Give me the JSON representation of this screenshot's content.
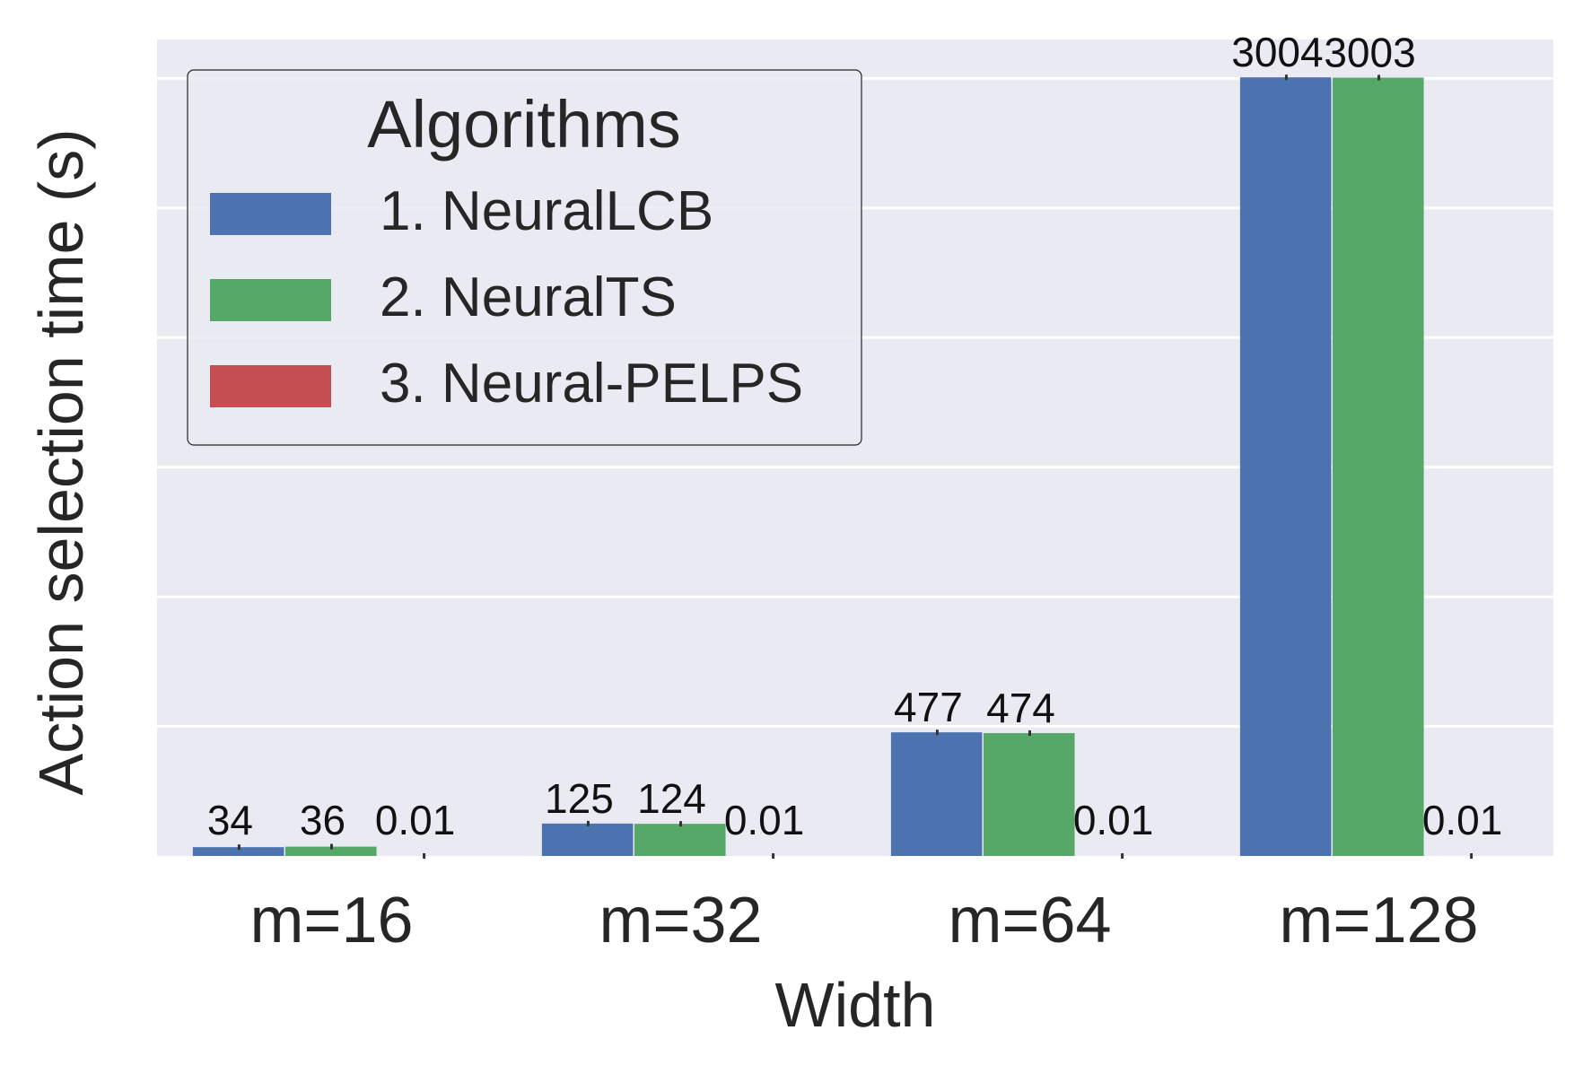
{
  "chart_data": {
    "type": "bar",
    "categories": [
      "m=16",
      "m=32",
      "m=64",
      "m=128"
    ],
    "series": [
      {
        "name": "1. NeuralLCB",
        "values": [
          34,
          125,
          477,
          3004
        ],
        "labels": [
          "34",
          "125",
          "477",
          "3004"
        ],
        "color": "#4c72b0"
      },
      {
        "name": "2. NeuralTS",
        "values": [
          36,
          124,
          474,
          3003
        ],
        "labels": [
          "36",
          "124",
          "474",
          "3003"
        ],
        "color": "#55a868"
      },
      {
        "name": "3. Neural-PELPS",
        "values": [
          0.01,
          0.01,
          0.01,
          0.01
        ],
        "labels": [
          "0.01",
          "0.01",
          "0.01",
          "0.01"
        ],
        "color": "#c44e52"
      }
    ],
    "xlabel": "Width",
    "ylabel": "Action selection time (s)",
    "ylim": [
      0,
      3150
    ],
    "grid": true,
    "legend": {
      "title": "Algorithms",
      "position": "top-left"
    },
    "background": "#eaeaf2",
    "grid_color": "#ffffff"
  }
}
